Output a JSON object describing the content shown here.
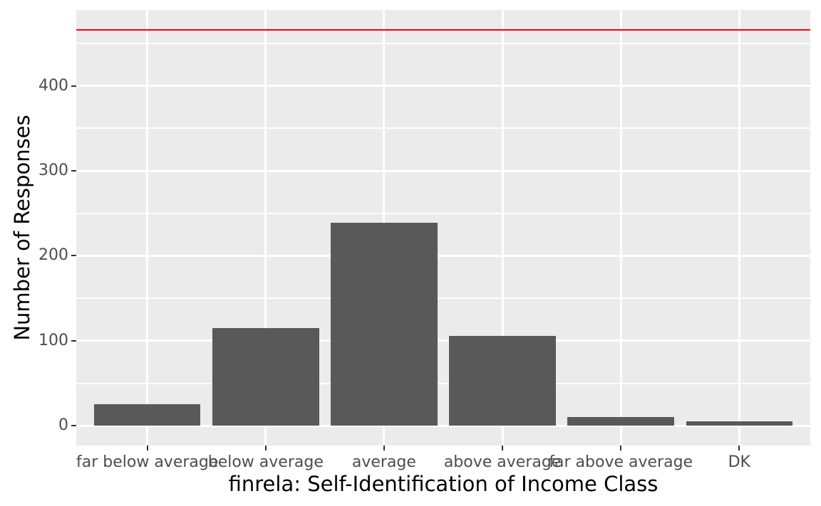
{
  "chart_data": {
    "type": "bar",
    "title": "",
    "xlabel": "finrela: Self-Identification of Income Class",
    "ylabel": "Number of Responses",
    "categories": [
      "far below average",
      "below average",
      "average",
      "above average",
      "far above average",
      "DK"
    ],
    "values": [
      25,
      115,
      239,
      106,
      10,
      5
    ],
    "ylim": [
      0,
      466
    ],
    "y_major_ticks": [
      0,
      100,
      200,
      300,
      400
    ],
    "y_minor_gridlines": [
      50,
      150,
      250,
      350,
      450
    ],
    "reference_line": {
      "type": "hline",
      "value": 466
    },
    "legend": "none",
    "grid": "on",
    "style": "ggplot2-gray",
    "bar_width_fraction": 0.9,
    "axis_expansion": 0.05
  },
  "colors": {
    "figure_background": "#FFFFFF",
    "panel_background": "#EBEBEB",
    "gridline": "#FFFFFF",
    "bar_fill": "#595959",
    "reference_line": "#FF0000",
    "tick_label": "#4D4D4D",
    "axis_title": "#000000",
    "tick_mark": "#333333"
  }
}
